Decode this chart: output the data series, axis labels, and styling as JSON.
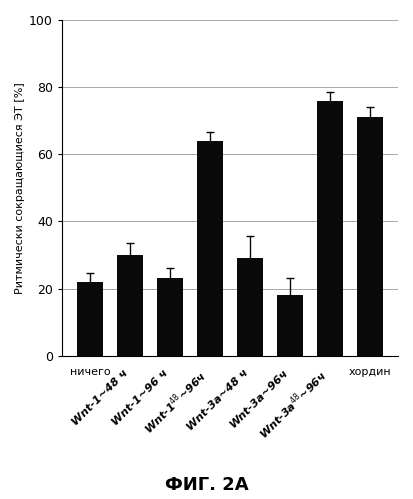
{
  "values": [
    22,
    30,
    23,
    64,
    29,
    18,
    76,
    71
  ],
  "errors": [
    2.5,
    3.5,
    3.0,
    2.5,
    6.5,
    5.0,
    2.5,
    3.0
  ],
  "bar_color": "#0a0a0a",
  "ylabel": "Ритмически сокращающиеся ЭТ [%]",
  "ylim": [
    0,
    100
  ],
  "yticks": [
    0,
    20,
    40,
    60,
    80,
    100
  ],
  "caption": "ФИГ. 2A",
  "background_color": "#ffffff",
  "figsize": [
    4.13,
    4.99
  ],
  "dpi": 100,
  "tick_labels": [
    "ничего",
    "Wnt-1~48 ч",
    "Wnt-1~96 ч",
    "Wnt-1´⁸~96ч",
    "Wnt-3a~48 ч",
    "Wnt-3a~96ч",
    "Wnt-3a´⁸~96ч",
    "хордин"
  ],
  "tick_labels_plain": [
    "ничего",
    "Wnt-1~48 ч",
    "Wnt-1~96 ч",
    "Wnt-148~96ч",
    "Wnt-3a~48 ч",
    "Wnt-3a~96ч",
    "Wnt-3a48~96ч",
    "хордин"
  ]
}
